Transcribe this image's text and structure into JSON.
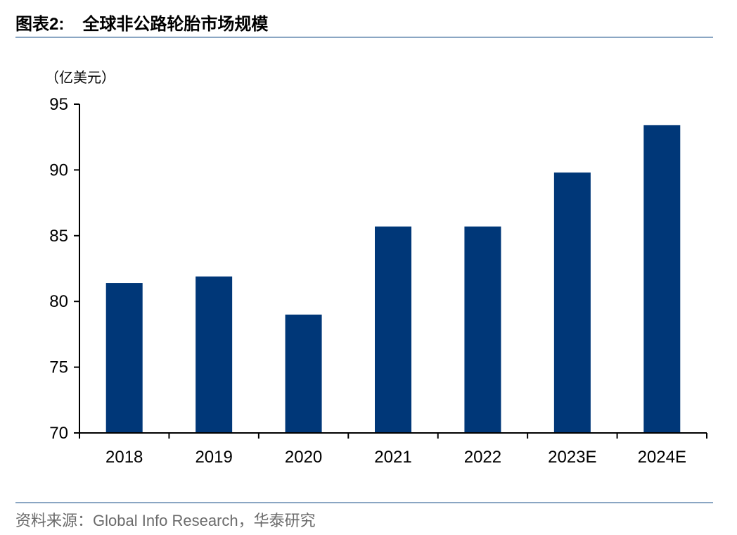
{
  "header": {
    "label": "图表",
    "number": "2:",
    "title": "全球非公路轮胎市场规模"
  },
  "source": "资料来源：Global Info Research，华泰研究",
  "colors": {
    "bar": "#003778",
    "rule": "#8aa6c3",
    "axis": "#000000"
  },
  "chart_data": {
    "type": "bar",
    "title": "全球非公路轮胎市场规模",
    "unit_label": "（亿美元）",
    "categories": [
      "2018",
      "2019",
      "2020",
      "2021",
      "2022",
      "2023E",
      "2024E"
    ],
    "values": [
      81.4,
      81.9,
      79.0,
      85.7,
      85.7,
      89.8,
      93.4
    ],
    "ylim": [
      70,
      95
    ],
    "yticks": [
      70,
      75,
      80,
      85,
      90,
      95
    ],
    "grid": false,
    "legend": "none"
  }
}
